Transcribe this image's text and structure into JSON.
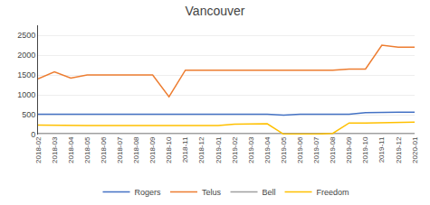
{
  "chart_data": {
    "type": "line",
    "title": "Vancouver",
    "categories": [
      "2018-02",
      "2018-03",
      "2018-04",
      "2018-05",
      "2018-06",
      "2018-07",
      "2018-08",
      "2018-09",
      "2018-10",
      "2018-11",
      "2018-12",
      "2019-01",
      "2019-02",
      "2019-03",
      "2019-04",
      "2019-05",
      "2019-06",
      "2019-07",
      "2019-08",
      "2019-09",
      "2019-10",
      "2019-11",
      "2019-12",
      "2020-01"
    ],
    "series": [
      {
        "name": "Rogers",
        "color": "#4472c4",
        "values": [
          510,
          510,
          510,
          510,
          510,
          510,
          510,
          510,
          510,
          510,
          510,
          510,
          510,
          510,
          510,
          490,
          510,
          510,
          510,
          510,
          550,
          560,
          560,
          560
        ]
      },
      {
        "name": "Telus",
        "color": "#ed7d31",
        "values": [
          1400,
          1580,
          1420,
          1500,
          1500,
          1500,
          1500,
          1500,
          950,
          1620,
          1620,
          1620,
          1620,
          1620,
          1620,
          1620,
          1620,
          1620,
          1620,
          1650,
          1650,
          2250,
          2200,
          2200
        ]
      },
      {
        "name": "Bell",
        "color": "#a0a0a0",
        "values": [
          30,
          30,
          30,
          30,
          30,
          30,
          30,
          30,
          30,
          30,
          30,
          30,
          30,
          30,
          30,
          30,
          30,
          30,
          30,
          30,
          30,
          30,
          30,
          30
        ]
      },
      {
        "name": "Freedom",
        "color": "#ffc000",
        "values": [
          240,
          230,
          230,
          225,
          225,
          225,
          225,
          225,
          225,
          225,
          225,
          225,
          260,
          270,
          270,
          10,
          10,
          10,
          30,
          290,
          290,
          300,
          315,
          315
        ]
      }
    ],
    "ylim": [
      0,
      2750
    ],
    "yticks": [
      0,
      500,
      1000,
      1500,
      2000,
      2500
    ],
    "grid": true,
    "legend": "bottom"
  }
}
